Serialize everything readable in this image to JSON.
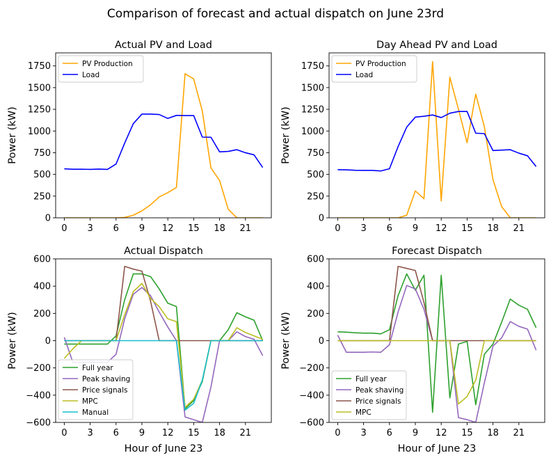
{
  "title": "Comparison of forecast and actual dispatch on June 23rd",
  "colors": {
    "pv": "#FFA500",
    "load": "#0000FF",
    "full_year": "#2CA02C",
    "peak_shaving": "#9467BD",
    "price_signals": "#8C564B",
    "mpc": "#BCBD22",
    "manual": "#17BECF"
  },
  "chart_data": [
    {
      "type": "line",
      "title": "Actual PV and Load",
      "xlabel": "",
      "ylabel": "Power (kW)",
      "xlim": [
        -1,
        24
      ],
      "ylim": [
        0,
        1900
      ],
      "xticks": [
        0,
        3,
        6,
        9,
        12,
        15,
        18,
        21
      ],
      "yticks": [
        0,
        250,
        500,
        750,
        1000,
        1250,
        1500,
        1750
      ],
      "legend": "top-left",
      "x": [
        0,
        1,
        2,
        3,
        4,
        5,
        6,
        7,
        8,
        9,
        10,
        11,
        12,
        13,
        14,
        15,
        16,
        17,
        18,
        19,
        20,
        21,
        22,
        23
      ],
      "series": [
        {
          "name": "PV Production",
          "color": "#FFA500",
          "values": [
            0,
            0,
            0,
            0,
            0,
            0,
            0,
            5,
            30,
            80,
            150,
            240,
            290,
            350,
            1660,
            1600,
            1230,
            575,
            430,
            100,
            0,
            0,
            0,
            0
          ]
        },
        {
          "name": "Load",
          "color": "#0000FF",
          "values": [
            565,
            560,
            560,
            558,
            562,
            558,
            620,
            860,
            1085,
            1195,
            1195,
            1190,
            1145,
            1180,
            1178,
            1178,
            930,
            928,
            760,
            765,
            785,
            750,
            725,
            580
          ]
        }
      ]
    },
    {
      "type": "line",
      "title": "Day Ahead PV and Load",
      "xlabel": "",
      "ylabel": "Power (kW)",
      "xlim": [
        -1,
        24
      ],
      "ylim": [
        0,
        1900
      ],
      "xticks": [
        0,
        3,
        6,
        9,
        12,
        15,
        18,
        21
      ],
      "yticks": [
        0,
        250,
        500,
        750,
        1000,
        1250,
        1500,
        1750
      ],
      "legend": "top-left",
      "x": [
        0,
        1,
        2,
        3,
        4,
        5,
        6,
        7,
        8,
        9,
        10,
        11,
        12,
        13,
        14,
        15,
        16,
        17,
        18,
        19,
        20,
        21,
        22,
        23
      ],
      "series": [
        {
          "name": "PV Production",
          "color": "#FFA500",
          "values": [
            0,
            0,
            0,
            0,
            0,
            0,
            0,
            0,
            30,
            310,
            220,
            1800,
            195,
            1620,
            1250,
            865,
            1425,
            1050,
            440,
            130,
            0,
            0,
            0,
            0
          ]
        },
        {
          "name": "Load",
          "color": "#0000FF",
          "values": [
            555,
            553,
            548,
            547,
            547,
            540,
            565,
            820,
            1045,
            1160,
            1170,
            1185,
            1155,
            1205,
            1225,
            1225,
            975,
            970,
            775,
            780,
            785,
            745,
            715,
            590
          ]
        }
      ]
    },
    {
      "type": "line",
      "title": "Actual Dispatch",
      "xlabel": "Hour of June 23",
      "ylabel": "Power (kW)",
      "xlim": [
        -1,
        24
      ],
      "ylim": [
        -600,
        600
      ],
      "xticks": [
        0,
        3,
        6,
        9,
        12,
        15,
        18,
        21
      ],
      "yticks": [
        -600,
        -400,
        -200,
        0,
        200,
        400,
        600
      ],
      "legend": "bottom-left",
      "x": [
        0,
        1,
        2,
        3,
        4,
        5,
        6,
        7,
        8,
        9,
        10,
        11,
        12,
        13,
        14,
        15,
        16,
        17,
        18,
        19,
        20,
        21,
        22,
        23
      ],
      "series": [
        {
          "name": "Full year",
          "color": "#2CA02C",
          "values": [
            -25,
            -25,
            -25,
            -25,
            -25,
            -25,
            35,
            300,
            490,
            490,
            470,
            380,
            275,
            250,
            -500,
            -440,
            -300,
            0,
            0,
            80,
            205,
            175,
            150,
            0
          ]
        },
        {
          "name": "Peak shaving",
          "color": "#9467BD",
          "values": [
            25,
            -160,
            -160,
            -160,
            -160,
            -160,
            -100,
            160,
            340,
            390,
            330,
            210,
            100,
            0,
            -560,
            -580,
            -600,
            -340,
            0,
            0,
            65,
            30,
            10,
            -110
          ]
        },
        {
          "name": "Price signals",
          "color": "#8C564B",
          "values": [
            0,
            0,
            0,
            0,
            0,
            0,
            0,
            545,
            525,
            510,
            290,
            0,
            0,
            0,
            0,
            0,
            0,
            0,
            0,
            0,
            0,
            0,
            0,
            0
          ]
        },
        {
          "name": "MPC",
          "color": "#BCBD22",
          "values": [
            -130,
            -60,
            0,
            0,
            0,
            0,
            0,
            190,
            360,
            420,
            310,
            250,
            160,
            140,
            -490,
            -430,
            -290,
            0,
            0,
            0,
            95,
            60,
            35,
            10
          ]
        },
        {
          "name": "Manual",
          "color": "#17BECF",
          "values": [
            0,
            0,
            0,
            0,
            0,
            0,
            0,
            0,
            0,
            0,
            0,
            0,
            0,
            0,
            -510,
            -460,
            -290,
            0,
            0,
            0,
            0,
            0,
            0,
            0
          ]
        }
      ]
    },
    {
      "type": "line",
      "title": "Forecast Dispatch",
      "xlabel": "Hour of June 23",
      "ylabel": "Power (kW)",
      "xlim": [
        -1,
        24
      ],
      "ylim": [
        -600,
        600
      ],
      "xticks": [
        0,
        3,
        6,
        9,
        12,
        15,
        18,
        21
      ],
      "yticks": [
        -600,
        -400,
        -200,
        0,
        200,
        400,
        600
      ],
      "legend": "bottom-left",
      "x": [
        0,
        1,
        2,
        3,
        4,
        5,
        6,
        7,
        8,
        9,
        10,
        11,
        12,
        13,
        14,
        15,
        16,
        17,
        18,
        19,
        20,
        21,
        22,
        23
      ],
      "series": [
        {
          "name": "Full year",
          "color": "#2CA02C",
          "values": [
            65,
            62,
            58,
            55,
            55,
            50,
            80,
            330,
            490,
            370,
            480,
            -525,
            480,
            -420,
            -25,
            -5,
            -470,
            -100,
            -25,
            135,
            305,
            260,
            230,
            95
          ]
        },
        {
          "name": "Peak shaving",
          "color": "#9467BD",
          "values": [
            40,
            -85,
            -85,
            -85,
            -83,
            -85,
            -30,
            210,
            405,
            380,
            230,
            0,
            0,
            0,
            -565,
            -580,
            -600,
            -310,
            -40,
            20,
            140,
            105,
            85,
            -70
          ]
        },
        {
          "name": "Price signals",
          "color": "#8C564B",
          "values": [
            0,
            0,
            0,
            0,
            0,
            0,
            0,
            545,
            530,
            515,
            280,
            0,
            0,
            0,
            0,
            0,
            0,
            0,
            0,
            0,
            0,
            0,
            0,
            0
          ]
        },
        {
          "name": "MPC",
          "color": "#BCBD22",
          "values": [
            0,
            0,
            0,
            0,
            0,
            0,
            0,
            0,
            0,
            0,
            0,
            0,
            0,
            0,
            -465,
            -410,
            -290,
            0,
            0,
            0,
            0,
            0,
            0,
            0
          ]
        }
      ]
    }
  ]
}
